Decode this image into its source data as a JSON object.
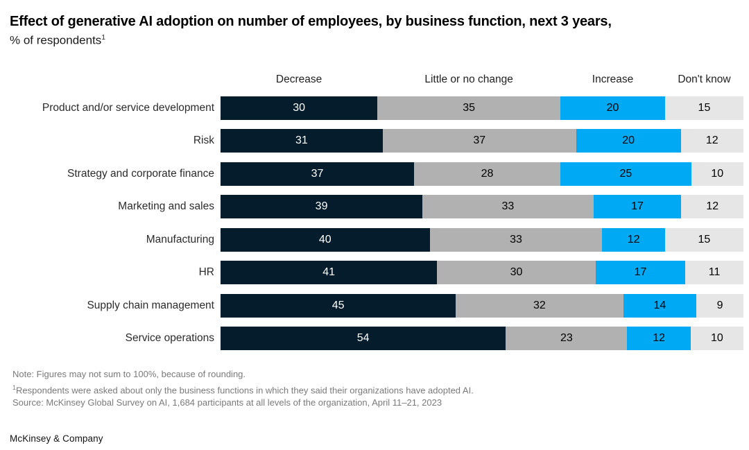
{
  "title": {
    "line1": "Effect of generative AI adoption on number of employees, by business function, next 3 years,",
    "line2": "% of respondents",
    "superscript": "1"
  },
  "chart_data": {
    "type": "bar",
    "orientation": "horizontal",
    "stacked": true,
    "unit": "% of respondents",
    "xlim": [
      0,
      100
    ],
    "grid": false,
    "legend_position": "top",
    "categories": [
      "Product and/or service development",
      "Risk",
      "Strategy and corporate finance",
      "Marketing and sales",
      "Manufacturing",
      "HR",
      "Supply chain management",
      "Service operations"
    ],
    "series": [
      {
        "name": "Decrease",
        "color": "#051C2C",
        "value_color": "#ffffff",
        "values": [
          30,
          31,
          37,
          39,
          40,
          41,
          45,
          54
        ]
      },
      {
        "name": "Little or no change",
        "color": "#B1B1B1",
        "value_color": "#000000",
        "values": [
          35,
          37,
          28,
          33,
          33,
          30,
          32,
          23
        ]
      },
      {
        "name": "Increase",
        "color": "#00A9F4",
        "value_color": "#000000",
        "values": [
          20,
          20,
          25,
          17,
          12,
          17,
          14,
          12
        ]
      },
      {
        "name": "Don't know",
        "color": "#E6E6E6",
        "value_color": "#000000",
        "values": [
          15,
          12,
          10,
          12,
          15,
          11,
          9,
          10
        ]
      }
    ]
  },
  "footnotes": {
    "note": "Note: Figures may not sum to 100%, because of rounding.",
    "fn1_sup": "1",
    "fn1_text": "Respondents were asked about only the business functions in which they said their organizations have adopted AI.",
    "source": "Source: McKinsey Global Survey on AI, 1,684 participants at all levels of the organization, April 11–21, 2023"
  },
  "branding": "McKinsey & Company"
}
